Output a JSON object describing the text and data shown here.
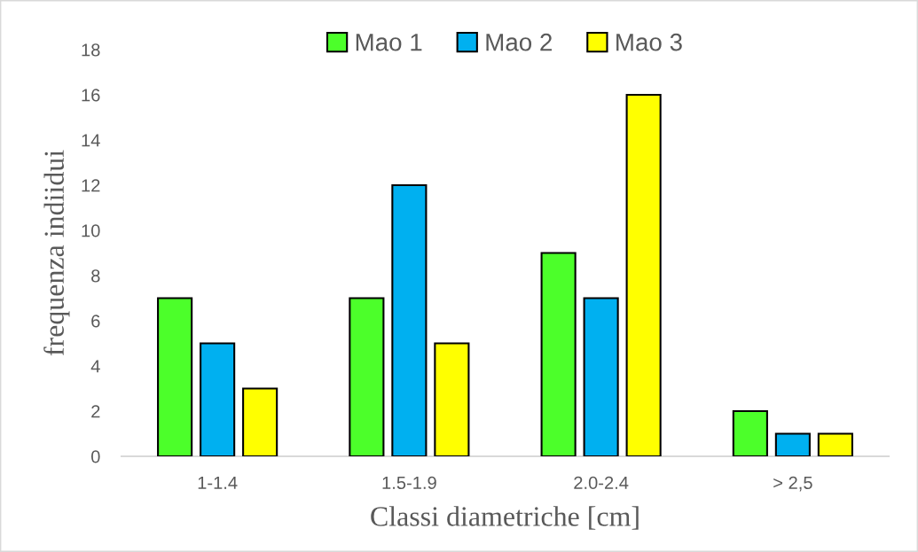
{
  "chart_data": {
    "type": "bar",
    "xlabel": "Classi diametriche [cm]",
    "ylabel": "frequenza indiidui",
    "categories": [
      "1-1.4",
      "1.5-1.9",
      "2.0-2.4",
      "> 2,5"
    ],
    "series": [
      {
        "name": "Mao 1",
        "color": "#4cff2a",
        "values": [
          7,
          7,
          9,
          2
        ]
      },
      {
        "name": "Mao 2",
        "color": "#00b0f0",
        "values": [
          5,
          12,
          7,
          1
        ]
      },
      {
        "name": "Mao 3",
        "color": "#ffff00",
        "values": [
          3,
          5,
          16,
          1
        ]
      }
    ],
    "ylim": [
      0,
      18
    ],
    "yticks": [
      0,
      2,
      4,
      6,
      8,
      10,
      12,
      14,
      16,
      18
    ],
    "grid": false,
    "legend": "top"
  }
}
